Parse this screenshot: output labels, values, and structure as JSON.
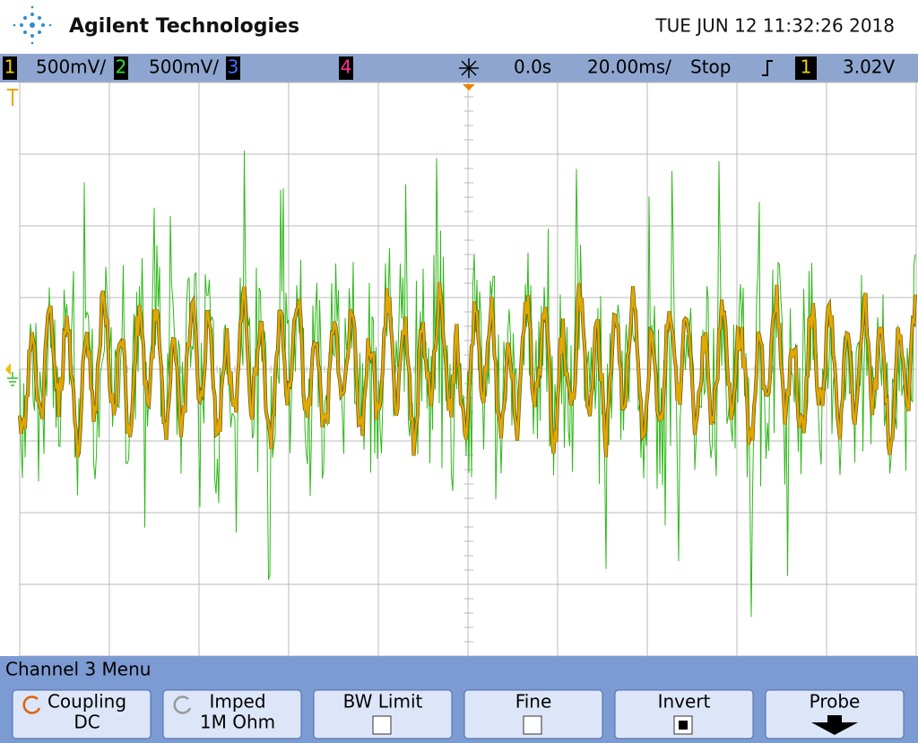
{
  "header": {
    "brand": "Agilent Technologies",
    "datetime": "TUE JUN 12 11:32:26 2018"
  },
  "status_bar": {
    "ch1": {
      "label": "1",
      "scale": "500mV/"
    },
    "ch2": {
      "label": "2",
      "scale": "500mV/"
    },
    "ch3": {
      "label": "3"
    },
    "ch4": {
      "label": "4"
    },
    "time_offset": "0.0s",
    "time_scale": "20.00ms/",
    "run_state": "Stop",
    "trigger_source": "1",
    "trigger_level": "3.02V"
  },
  "menu": {
    "title": "Channel 3  Menu",
    "softkeys": [
      {
        "label": "Coupling",
        "value": "DC"
      },
      {
        "label": "Imped",
        "value": "1M Ohm"
      },
      {
        "label": "BW Limit",
        "checked": false
      },
      {
        "label": "Fine",
        "checked": false
      },
      {
        "label": "Invert",
        "checked": true
      },
      {
        "label": "Probe"
      }
    ]
  }
}
